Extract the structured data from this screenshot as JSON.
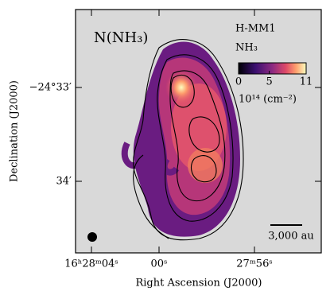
{
  "chart_data": {
    "type": "image",
    "title": "N(NH₃)",
    "source": "H-MM1",
    "species": "NH₃",
    "colorbar": {
      "lim": [
        0,
        11
      ],
      "ticks": [
        0,
        5,
        11
      ],
      "label": "10¹⁴ (cm⁻²)"
    },
    "x_label": "Right Ascension (J2000)",
    "y_label": "Declination (J2000)",
    "x_tick_labels": [
      "16ʰ28ᵐ04ˢ",
      "00ˢ",
      "27ᵐ56ˢ"
    ],
    "y_tick_labels": [
      "−24°33′",
      "34′"
    ],
    "scale_bar": "3,000 au"
  }
}
